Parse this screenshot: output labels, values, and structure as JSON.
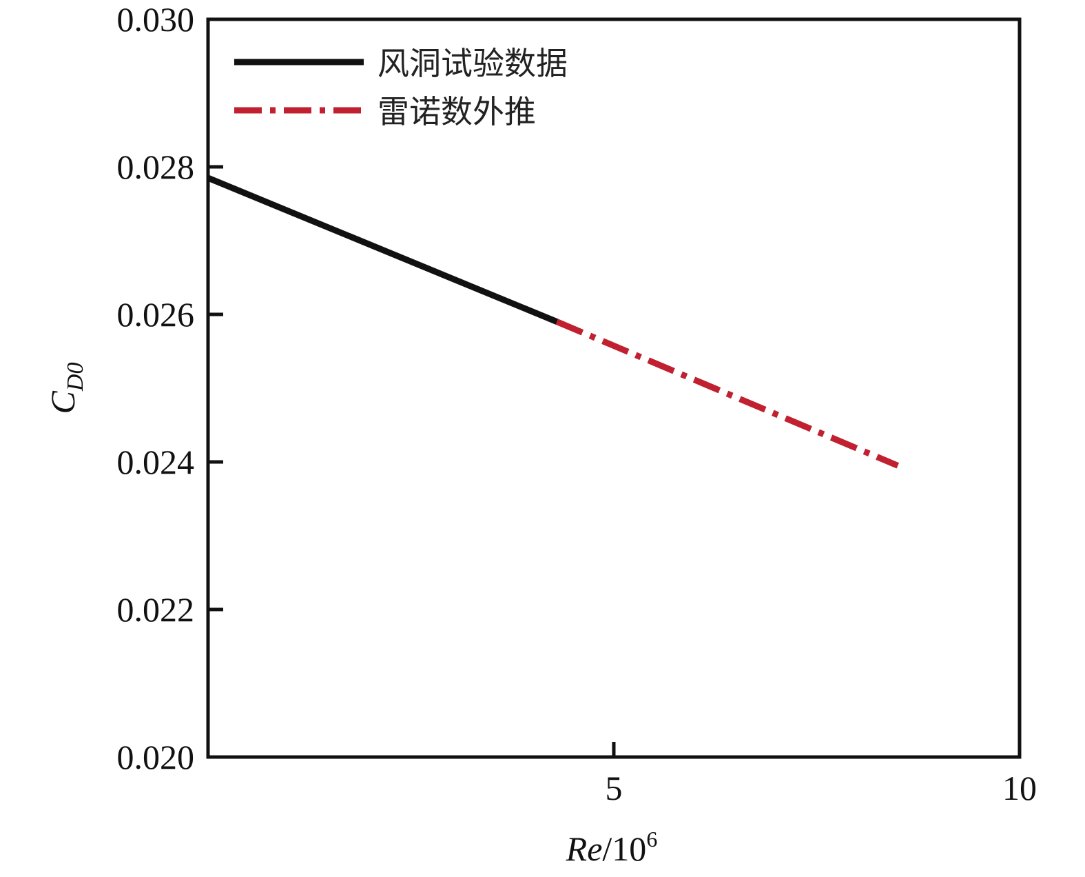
{
  "chart_data": {
    "type": "line",
    "title": "",
    "xlabel": {
      "italic": "Re",
      "plain": "/10",
      "sup": "6"
    },
    "ylabel": {
      "main": "C",
      "sub": "D0"
    },
    "xlim": [
      0,
      10
    ],
    "ylim": [
      0.02,
      0.03
    ],
    "xticks": [
      5,
      10
    ],
    "xtick_labels": [
      "5",
      "10"
    ],
    "yticks": [
      0.02,
      0.022,
      0.024,
      0.026,
      0.028,
      0.03
    ],
    "ytick_labels": [
      "0.020",
      "0.022",
      "0.024",
      "0.026",
      "0.028",
      "0.030"
    ],
    "grid": false,
    "legend_position": "top-left",
    "series": [
      {
        "name": "风洞试验数据",
        "style": "solid",
        "color": "#111111",
        "x": [
          0.0,
          4.3
        ],
        "y": [
          0.02785,
          0.0259
        ]
      },
      {
        "name": "雷诺数外推",
        "style": "dash-dot",
        "color": "#c0202f",
        "x": [
          4.3,
          8.5
        ],
        "y": [
          0.0259,
          0.02395
        ]
      }
    ]
  }
}
